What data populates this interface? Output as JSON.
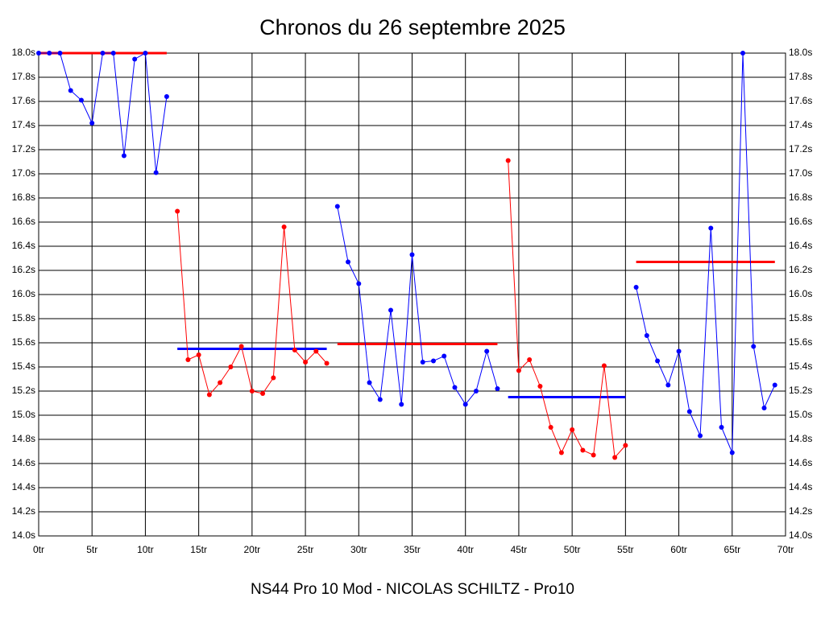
{
  "chart_data": {
    "type": "line",
    "title": "Chronos du 26 septembre 2025",
    "xlabel": "NS44 Pro 10 Mod - NICOLAS SCHILTZ - Pro10",
    "xlim": [
      0,
      70
    ],
    "ylim": [
      14.0,
      18.0
    ],
    "grid": true,
    "xticks": [
      {
        "value": 0,
        "label": "0tr"
      },
      {
        "value": 5,
        "label": "5tr"
      },
      {
        "value": 10,
        "label": "10tr"
      },
      {
        "value": 15,
        "label": "15tr"
      },
      {
        "value": 20,
        "label": "20tr"
      },
      {
        "value": 25,
        "label": "25tr"
      },
      {
        "value": 30,
        "label": "30tr"
      },
      {
        "value": 35,
        "label": "35tr"
      },
      {
        "value": 40,
        "label": "40tr"
      },
      {
        "value": 45,
        "label": "45tr"
      },
      {
        "value": 50,
        "label": "50tr"
      },
      {
        "value": 55,
        "label": "55tr"
      },
      {
        "value": 60,
        "label": "60tr"
      },
      {
        "value": 65,
        "label": "65tr"
      },
      {
        "value": 70,
        "label": "70tr"
      }
    ],
    "yticks": [
      {
        "value": 14.0,
        "label": "14.0s"
      },
      {
        "value": 14.2,
        "label": "14.2s"
      },
      {
        "value": 14.4,
        "label": "14.4s"
      },
      {
        "value": 14.6,
        "label": "14.6s"
      },
      {
        "value": 14.8,
        "label": "14.8s"
      },
      {
        "value": 15.0,
        "label": "15.0s"
      },
      {
        "value": 15.2,
        "label": "15.2s"
      },
      {
        "value": 15.4,
        "label": "15.4s"
      },
      {
        "value": 15.6,
        "label": "15.6s"
      },
      {
        "value": 15.8,
        "label": "15.8s"
      },
      {
        "value": 16.0,
        "label": "16.0s"
      },
      {
        "value": 16.2,
        "label": "16.2s"
      },
      {
        "value": 16.4,
        "label": "16.4s"
      },
      {
        "value": 16.6,
        "label": "16.6s"
      },
      {
        "value": 16.8,
        "label": "16.8s"
      },
      {
        "value": 17.0,
        "label": "17.0s"
      },
      {
        "value": 17.2,
        "label": "17.2s"
      },
      {
        "value": 17.4,
        "label": "17.4s"
      },
      {
        "value": 17.6,
        "label": "17.6s"
      },
      {
        "value": 17.8,
        "label": "17.8s"
      },
      {
        "value": 18.0,
        "label": "18.0s"
      }
    ],
    "series": [
      {
        "color": "#0000ff",
        "x": [
          0,
          1,
          2,
          3,
          4,
          5,
          6,
          7,
          8,
          9,
          10,
          11,
          12
        ],
        "values": [
          18.0,
          18.0,
          18.0,
          17.69,
          17.61,
          17.42,
          18.0,
          18.0,
          17.15,
          17.95,
          18.0,
          17.01,
          17.64
        ]
      },
      {
        "color": "#ff0000",
        "x": [
          13,
          14,
          15,
          16,
          17,
          18,
          19,
          20,
          21,
          22,
          23,
          24,
          25,
          26,
          27
        ],
        "values": [
          16.69,
          15.46,
          15.5,
          15.17,
          15.27,
          15.4,
          15.57,
          15.2,
          15.18,
          15.31,
          16.56,
          15.54,
          15.44,
          15.53,
          15.43
        ]
      },
      {
        "color": "#0000ff",
        "x": [
          28,
          29,
          30,
          31,
          32,
          33,
          34,
          35,
          36,
          37,
          38,
          39,
          40,
          41,
          42,
          43
        ],
        "values": [
          16.73,
          16.27,
          16.09,
          15.27,
          15.13,
          15.87,
          15.09,
          16.33,
          15.44,
          15.45,
          15.49,
          15.23,
          15.09,
          15.2,
          15.53,
          15.22
        ]
      },
      {
        "color": "#ff0000",
        "x": [
          44,
          45,
          46,
          47,
          48,
          49,
          50,
          51,
          52,
          53,
          54,
          55
        ],
        "values": [
          17.11,
          15.37,
          15.46,
          15.24,
          14.9,
          14.69,
          14.88,
          14.71,
          14.67,
          15.41,
          14.65,
          14.75
        ]
      },
      {
        "color": "#0000ff",
        "x": [
          56,
          57,
          58,
          59,
          60,
          61,
          62,
          63,
          64,
          65,
          66,
          67,
          68,
          69
        ],
        "values": [
          16.06,
          15.66,
          15.45,
          15.25,
          15.53,
          15.03,
          14.83,
          16.55,
          14.9,
          14.69,
          18.0,
          15.57,
          15.06,
          15.25
        ]
      }
    ],
    "averages": [
      {
        "color": "#ff0000",
        "x": [
          0,
          12
        ],
        "value": 18.0
      },
      {
        "color": "#0000ff",
        "x": [
          13,
          27
        ],
        "value": 15.55
      },
      {
        "color": "#ff0000",
        "x": [
          28,
          43
        ],
        "value": 15.59
      },
      {
        "color": "#0000ff",
        "x": [
          44,
          55
        ],
        "value": 15.15
      },
      {
        "color": "#ff0000",
        "x": [
          56,
          69
        ],
        "value": 16.27
      }
    ]
  }
}
